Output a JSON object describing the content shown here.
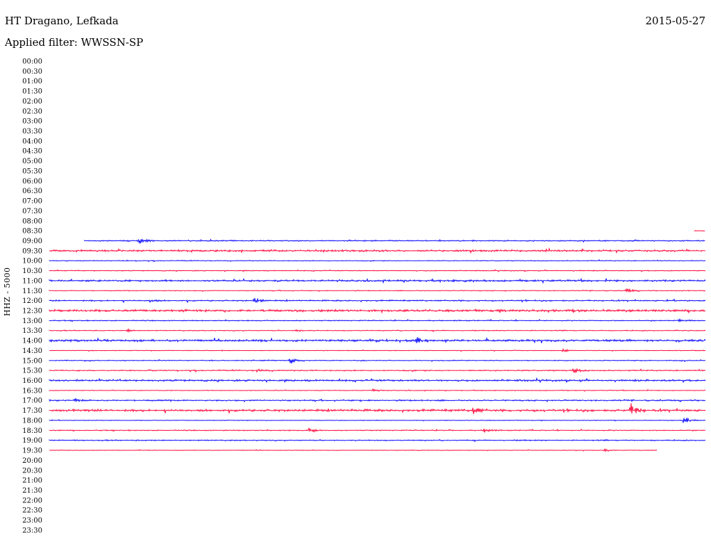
{
  "header": {
    "station": "HT Dragano, Lefkada",
    "date": "2015-05-27",
    "filter": "Applied filter: WWSSN-SP"
  },
  "chart_data": {
    "type": "line",
    "title": "HT Dragano, Lefkada",
    "ylabel": "HHZ - 5000",
    "tick_labels": [
      "00:00",
      "00:30",
      "01:00",
      "01:30",
      "02:00",
      "02:30",
      "03:00",
      "03:30",
      "04:00",
      "04:30",
      "05:00",
      "05:30",
      "06:00",
      "06:30",
      "07:00",
      "07:30",
      "08:00",
      "08:30",
      "09:00",
      "09:30",
      "10:00",
      "10:30",
      "11:00",
      "11:30",
      "12:00",
      "12:30",
      "13:00",
      "13:30",
      "14:00",
      "14:30",
      "15:00",
      "15:30",
      "16:00",
      "16:30",
      "17:00",
      "17:30",
      "18:00",
      "18:30",
      "19:00",
      "19:30",
      "20:00",
      "20:30",
      "21:00",
      "21:30",
      "22:00",
      "22:30",
      "23:00",
      "23:30"
    ],
    "colors": {
      "odd_hour": "#0000ff",
      "half_hour": "#ff0033"
    },
    "trace_time_range_min": [
      0,
      30
    ],
    "traces": [
      {
        "label": "08:30",
        "color": "#ff0033",
        "start_min": 29.5,
        "end_min": 30,
        "noise": 0.6,
        "events": []
      },
      {
        "label": "09:00",
        "color": "#0000ff",
        "start_min": 1.6,
        "end_min": 30,
        "noise": 1.0,
        "events": [
          {
            "t": 4.1,
            "amp": 5
          }
        ]
      },
      {
        "label": "09:30",
        "color": "#ff0033",
        "start_min": 0,
        "end_min": 30,
        "noise": 1.6,
        "events": []
      },
      {
        "label": "10:00",
        "color": "#0000ff",
        "start_min": 0,
        "end_min": 30,
        "noise": 0.7,
        "events": []
      },
      {
        "label": "10:30",
        "color": "#ff0033",
        "start_min": 0,
        "end_min": 30,
        "noise": 0.8,
        "events": []
      },
      {
        "label": "11:00",
        "color": "#0000ff",
        "start_min": 0,
        "end_min": 30,
        "noise": 1.6,
        "events": []
      },
      {
        "label": "11:30",
        "color": "#ff0033",
        "start_min": 0,
        "end_min": 30,
        "noise": 0.7,
        "events": [
          {
            "t": 26.4,
            "amp": 3
          }
        ]
      },
      {
        "label": "12:00",
        "color": "#0000ff",
        "start_min": 0,
        "end_min": 30,
        "noise": 1.2,
        "events": [
          {
            "t": 9.4,
            "amp": 5
          },
          {
            "t": 4.6,
            "amp": 2
          }
        ]
      },
      {
        "label": "12:30",
        "color": "#ff0033",
        "start_min": 0,
        "end_min": 30,
        "noise": 2.0,
        "events": []
      },
      {
        "label": "13:00",
        "color": "#0000ff",
        "start_min": 0,
        "end_min": 30,
        "noise": 0.9,
        "events": [
          {
            "t": 28.8,
            "amp": 2
          }
        ]
      },
      {
        "label": "13:30",
        "color": "#ff0033",
        "start_min": 0,
        "end_min": 30,
        "noise": 0.8,
        "events": [
          {
            "t": 3.6,
            "amp": 2
          },
          {
            "t": 11.3,
            "amp": 2
          }
        ]
      },
      {
        "label": "14:00",
        "color": "#0000ff",
        "start_min": 0,
        "end_min": 30,
        "noise": 1.8,
        "events": [
          {
            "t": 16.8,
            "amp": 5
          }
        ]
      },
      {
        "label": "14:30",
        "color": "#ff0033",
        "start_min": 0,
        "end_min": 30,
        "noise": 0.6,
        "events": [
          {
            "t": 23.5,
            "amp": 2
          }
        ]
      },
      {
        "label": "15:00",
        "color": "#0000ff",
        "start_min": 0,
        "end_min": 30,
        "noise": 0.8,
        "events": [
          {
            "t": 11.0,
            "amp": 5
          }
        ]
      },
      {
        "label": "15:30",
        "color": "#ff0033",
        "start_min": 0,
        "end_min": 30,
        "noise": 1.0,
        "events": [
          {
            "t": 24.0,
            "amp": 4
          },
          {
            "t": 9.5,
            "amp": 2
          }
        ]
      },
      {
        "label": "16:00",
        "color": "#0000ff",
        "start_min": 0,
        "end_min": 30,
        "noise": 1.6,
        "events": []
      },
      {
        "label": "16:30",
        "color": "#ff0033",
        "start_min": 0,
        "end_min": 30,
        "noise": 0.6,
        "events": [
          {
            "t": 14.8,
            "amp": 2
          }
        ]
      },
      {
        "label": "17:00",
        "color": "#0000ff",
        "start_min": 0,
        "end_min": 30,
        "noise": 1.2,
        "events": [
          {
            "t": 1.2,
            "amp": 3
          }
        ]
      },
      {
        "label": "17:30",
        "color": "#ff0033",
        "start_min": 0,
        "end_min": 30,
        "noise": 2.0,
        "events": [
          {
            "t": 19.4,
            "amp": 6
          },
          {
            "t": 26.6,
            "amp": 9
          }
        ]
      },
      {
        "label": "18:00",
        "color": "#0000ff",
        "start_min": 0,
        "end_min": 30,
        "noise": 0.6,
        "events": [
          {
            "t": 29.0,
            "amp": 6
          }
        ]
      },
      {
        "label": "18:30",
        "color": "#ff0033",
        "start_min": 0,
        "end_min": 30,
        "noise": 0.9,
        "events": [
          {
            "t": 11.9,
            "amp": 4
          },
          {
            "t": 19.9,
            "amp": 3
          }
        ]
      },
      {
        "label": "19:00",
        "color": "#0000ff",
        "start_min": 0,
        "end_min": 30,
        "noise": 1.0,
        "events": []
      },
      {
        "label": "19:30",
        "color": "#ff0033",
        "start_min": 0,
        "end_min": 27.8,
        "noise": 0.5,
        "events": [
          {
            "t": 25.4,
            "amp": 2
          }
        ]
      }
    ]
  }
}
